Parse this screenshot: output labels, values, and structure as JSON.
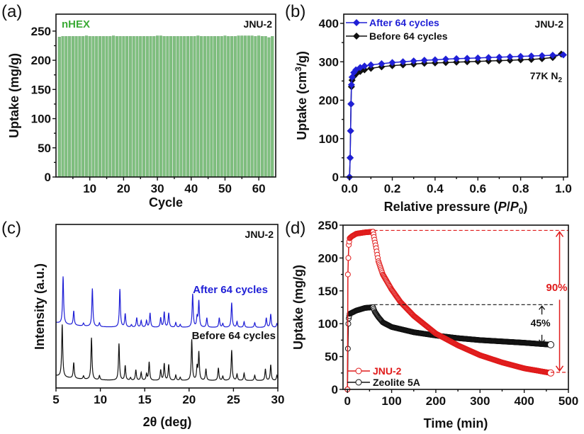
{
  "chart_data": [
    {
      "panel_label": "(a)",
      "type": "bar",
      "xlabel": "Cycle",
      "ylabel": "Uptake (mg/g)",
      "xlim": [
        0,
        65
      ],
      "ylim": [
        0,
        279
      ],
      "xticks": [
        10,
        20,
        30,
        40,
        50,
        60
      ],
      "yticks": [
        0,
        50,
        100,
        150,
        200,
        250
      ],
      "annotation_left": "nHEX",
      "annotation_right": "JNU-2",
      "bar_color": "#7fbf7f",
      "label_color": "#3aaa35",
      "categories": [
        1,
        2,
        3,
        4,
        5,
        6,
        7,
        8,
        9,
        10,
        11,
        12,
        13,
        14,
        15,
        16,
        17,
        18,
        19,
        20,
        21,
        22,
        23,
        24,
        25,
        26,
        27,
        28,
        29,
        30,
        31,
        32,
        33,
        34,
        35,
        36,
        37,
        38,
        39,
        40,
        41,
        42,
        43,
        44,
        45,
        46,
        47,
        48,
        49,
        50,
        51,
        52,
        53,
        54,
        55,
        56,
        57,
        58,
        59,
        60,
        61,
        62,
        63,
        64
      ],
      "values": [
        240,
        241,
        241,
        241,
        241,
        241,
        241,
        241,
        242,
        241,
        241,
        241,
        241,
        241,
        241,
        241,
        242,
        241,
        241,
        241,
        241,
        241,
        241,
        241,
        241,
        241,
        241,
        241,
        241,
        242,
        242,
        241,
        241,
        241,
        241,
        241,
        241,
        241,
        241,
        241,
        241,
        242,
        241,
        241,
        241,
        241,
        241,
        241,
        241,
        242,
        241,
        241,
        241,
        242,
        242,
        242,
        242,
        242,
        241,
        242,
        241,
        241,
        239,
        241
      ]
    },
    {
      "panel_label": "(b)",
      "type": "line",
      "xlabel": "Relative pressure (P/P0)",
      "xlabel_parts": [
        "Relative pressure (",
        "P",
        "/",
        "P",
        "0",
        ")"
      ],
      "ylabel": "Uptake (cm3/g)",
      "ylabel_parts": [
        "Uptake (cm",
        "3",
        "/g)"
      ],
      "xlim": [
        -0.027,
        1.02
      ],
      "ylim": [
        0,
        424
      ],
      "xticks": [
        "0.0",
        "0.2",
        "0.4",
        "0.6",
        "0.8",
        "1.0"
      ],
      "yticks": [
        0,
        100,
        200,
        300,
        400
      ],
      "annotation_right": "JNU-2",
      "annotation_condition": [
        "77K N",
        "2"
      ],
      "series": [
        {
          "name": "After 64 cycles",
          "color": "#1f1fd6",
          "x": [
            0,
            0.003,
            0.005,
            0.007,
            0.009,
            0.012,
            0.02,
            0.03,
            0.05,
            0.07,
            0.1,
            0.15,
            0.2,
            0.25,
            0.3,
            0.35,
            0.4,
            0.45,
            0.5,
            0.55,
            0.6,
            0.65,
            0.7,
            0.75,
            0.8,
            0.85,
            0.9,
            0.95,
            1.0
          ],
          "y": [
            0,
            50,
            120,
            190,
            240,
            260,
            272,
            279,
            285,
            289,
            292,
            295,
            298,
            300,
            302,
            304,
            305,
            307,
            308,
            309,
            310,
            311,
            312,
            313,
            314,
            315,
            316,
            317,
            318
          ]
        },
        {
          "name": "Before 64 cycles",
          "color": "#111111",
          "x": [
            0,
            0.003,
            0.005,
            0.007,
            0.009,
            0.012,
            0.02,
            0.03,
            0.05,
            0.07,
            0.1,
            0.15,
            0.2,
            0.25,
            0.3,
            0.35,
            0.4,
            0.45,
            0.5,
            0.55,
            0.6,
            0.65,
            0.7,
            0.75,
            0.8,
            0.85,
            0.9,
            0.95,
            0.99
          ],
          "y": [
            0,
            50,
            120,
            190,
            235,
            252,
            262,
            268,
            275,
            279,
            283,
            287,
            290,
            292,
            294,
            296,
            297,
            298,
            299,
            300,
            301,
            302,
            303,
            304,
            305,
            306,
            308,
            311,
            320
          ]
        }
      ]
    },
    {
      "panel_label": "(c)",
      "type": "line",
      "xlabel": "2θ (deg)",
      "ylabel": "Intensity (a.u.)",
      "xlim": [
        5,
        30
      ],
      "xticks": [
        5,
        10,
        15,
        20,
        25,
        30
      ],
      "annotation_right": "JNU-2",
      "series": [
        {
          "name": "After 64 cycles",
          "color": "#1f1fd6",
          "offset": 0.37,
          "scale": 0.29,
          "peaks": [
            [
              5.8,
              1.0
            ],
            [
              7.0,
              0.3
            ],
            [
              8.1,
              0.06
            ],
            [
              9.1,
              0.8
            ],
            [
              9.9,
              0.08
            ],
            [
              12.2,
              0.8
            ],
            [
              12.8,
              0.28
            ],
            [
              13.5,
              0.05
            ],
            [
              14.1,
              0.2
            ],
            [
              14.6,
              0.14
            ],
            [
              15.2,
              0.14
            ],
            [
              15.6,
              0.3
            ],
            [
              16.8,
              0.2
            ],
            [
              17.2,
              0.32
            ],
            [
              17.7,
              0.3
            ],
            [
              18.5,
              0.1
            ],
            [
              19.0,
              0.06
            ],
            [
              20.4,
              0.7
            ],
            [
              20.9,
              0.2
            ],
            [
              21.1,
              0.55
            ],
            [
              22.0,
              0.2
            ],
            [
              23.4,
              0.2
            ],
            [
              23.8,
              0.08
            ],
            [
              24.8,
              0.52
            ],
            [
              25.4,
              0.12
            ],
            [
              26.2,
              0.12
            ],
            [
              27.4,
              0.1
            ],
            [
              28.7,
              0.2
            ],
            [
              29.2,
              0.28
            ],
            [
              29.9,
              0.08
            ]
          ]
        },
        {
          "name": "Before 64 cycles",
          "color": "#111111",
          "offset": 0.045,
          "scale": 0.32,
          "peaks": [
            [
              5.7,
              1.0
            ],
            [
              7.0,
              0.3
            ],
            [
              8.1,
              0.06
            ],
            [
              9.0,
              0.8
            ],
            [
              9.9,
              0.08
            ],
            [
              12.1,
              0.7
            ],
            [
              12.8,
              0.28
            ],
            [
              13.4,
              0.05
            ],
            [
              14.0,
              0.2
            ],
            [
              14.6,
              0.15
            ],
            [
              15.2,
              0.12
            ],
            [
              15.5,
              0.35
            ],
            [
              16.8,
              0.2
            ],
            [
              17.2,
              0.32
            ],
            [
              17.7,
              0.3
            ],
            [
              18.5,
              0.1
            ],
            [
              19.0,
              0.06
            ],
            [
              20.3,
              0.78
            ],
            [
              20.9,
              0.25
            ],
            [
              21.1,
              0.53
            ],
            [
              21.9,
              0.22
            ],
            [
              23.3,
              0.24
            ],
            [
              23.8,
              0.08
            ],
            [
              24.8,
              0.58
            ],
            [
              25.4,
              0.12
            ],
            [
              26.2,
              0.14
            ],
            [
              27.4,
              0.1
            ],
            [
              28.6,
              0.22
            ],
            [
              29.2,
              0.3
            ],
            [
              29.9,
              0.1
            ]
          ]
        }
      ]
    },
    {
      "panel_label": "(d)",
      "type": "scatter",
      "xlabel": "Time (min)",
      "ylabel": "Uptake (mg/g)",
      "xlim": [
        -10,
        500
      ],
      "ylim": [
        0,
        250
      ],
      "xticks": [
        0,
        100,
        200,
        300,
        400,
        500
      ],
      "yticks": [
        0,
        50,
        100,
        150,
        200,
        250
      ],
      "annotation_jnu": "90%",
      "annotation_zeolite": "45%",
      "series": [
        {
          "name": "JNU-2",
          "color": "#e01b1b",
          "x": [
            0,
            1,
            2,
            3,
            5,
            10,
            20,
            40,
            58,
            60,
            65,
            70,
            80,
            100,
            120,
            150,
            200,
            250,
            300,
            350,
            400,
            460
          ],
          "y": [
            0,
            175,
            200,
            220,
            230,
            233,
            237,
            239,
            240,
            232,
            215,
            195,
            175,
            152,
            133,
            112,
            85,
            67,
            52,
            41,
            32,
            25
          ]
        },
        {
          "name": "Zeolite 5A",
          "color": "#111111",
          "x": [
            0,
            1,
            2,
            3,
            5,
            20,
            40,
            58,
            62,
            70,
            80,
            100,
            150,
            200,
            250,
            300,
            350,
            400,
            460
          ],
          "y": [
            0,
            62,
            100,
            108,
            115,
            120,
            124,
            125,
            118,
            110,
            102,
            95,
            87,
            82,
            78,
            75,
            73,
            71,
            68
          ]
        }
      ],
      "reference_lines": {
        "jnu_max": 242,
        "jnu_end": 26,
        "zeolite_max": 129,
        "zeolite_end": 68
      }
    }
  ]
}
